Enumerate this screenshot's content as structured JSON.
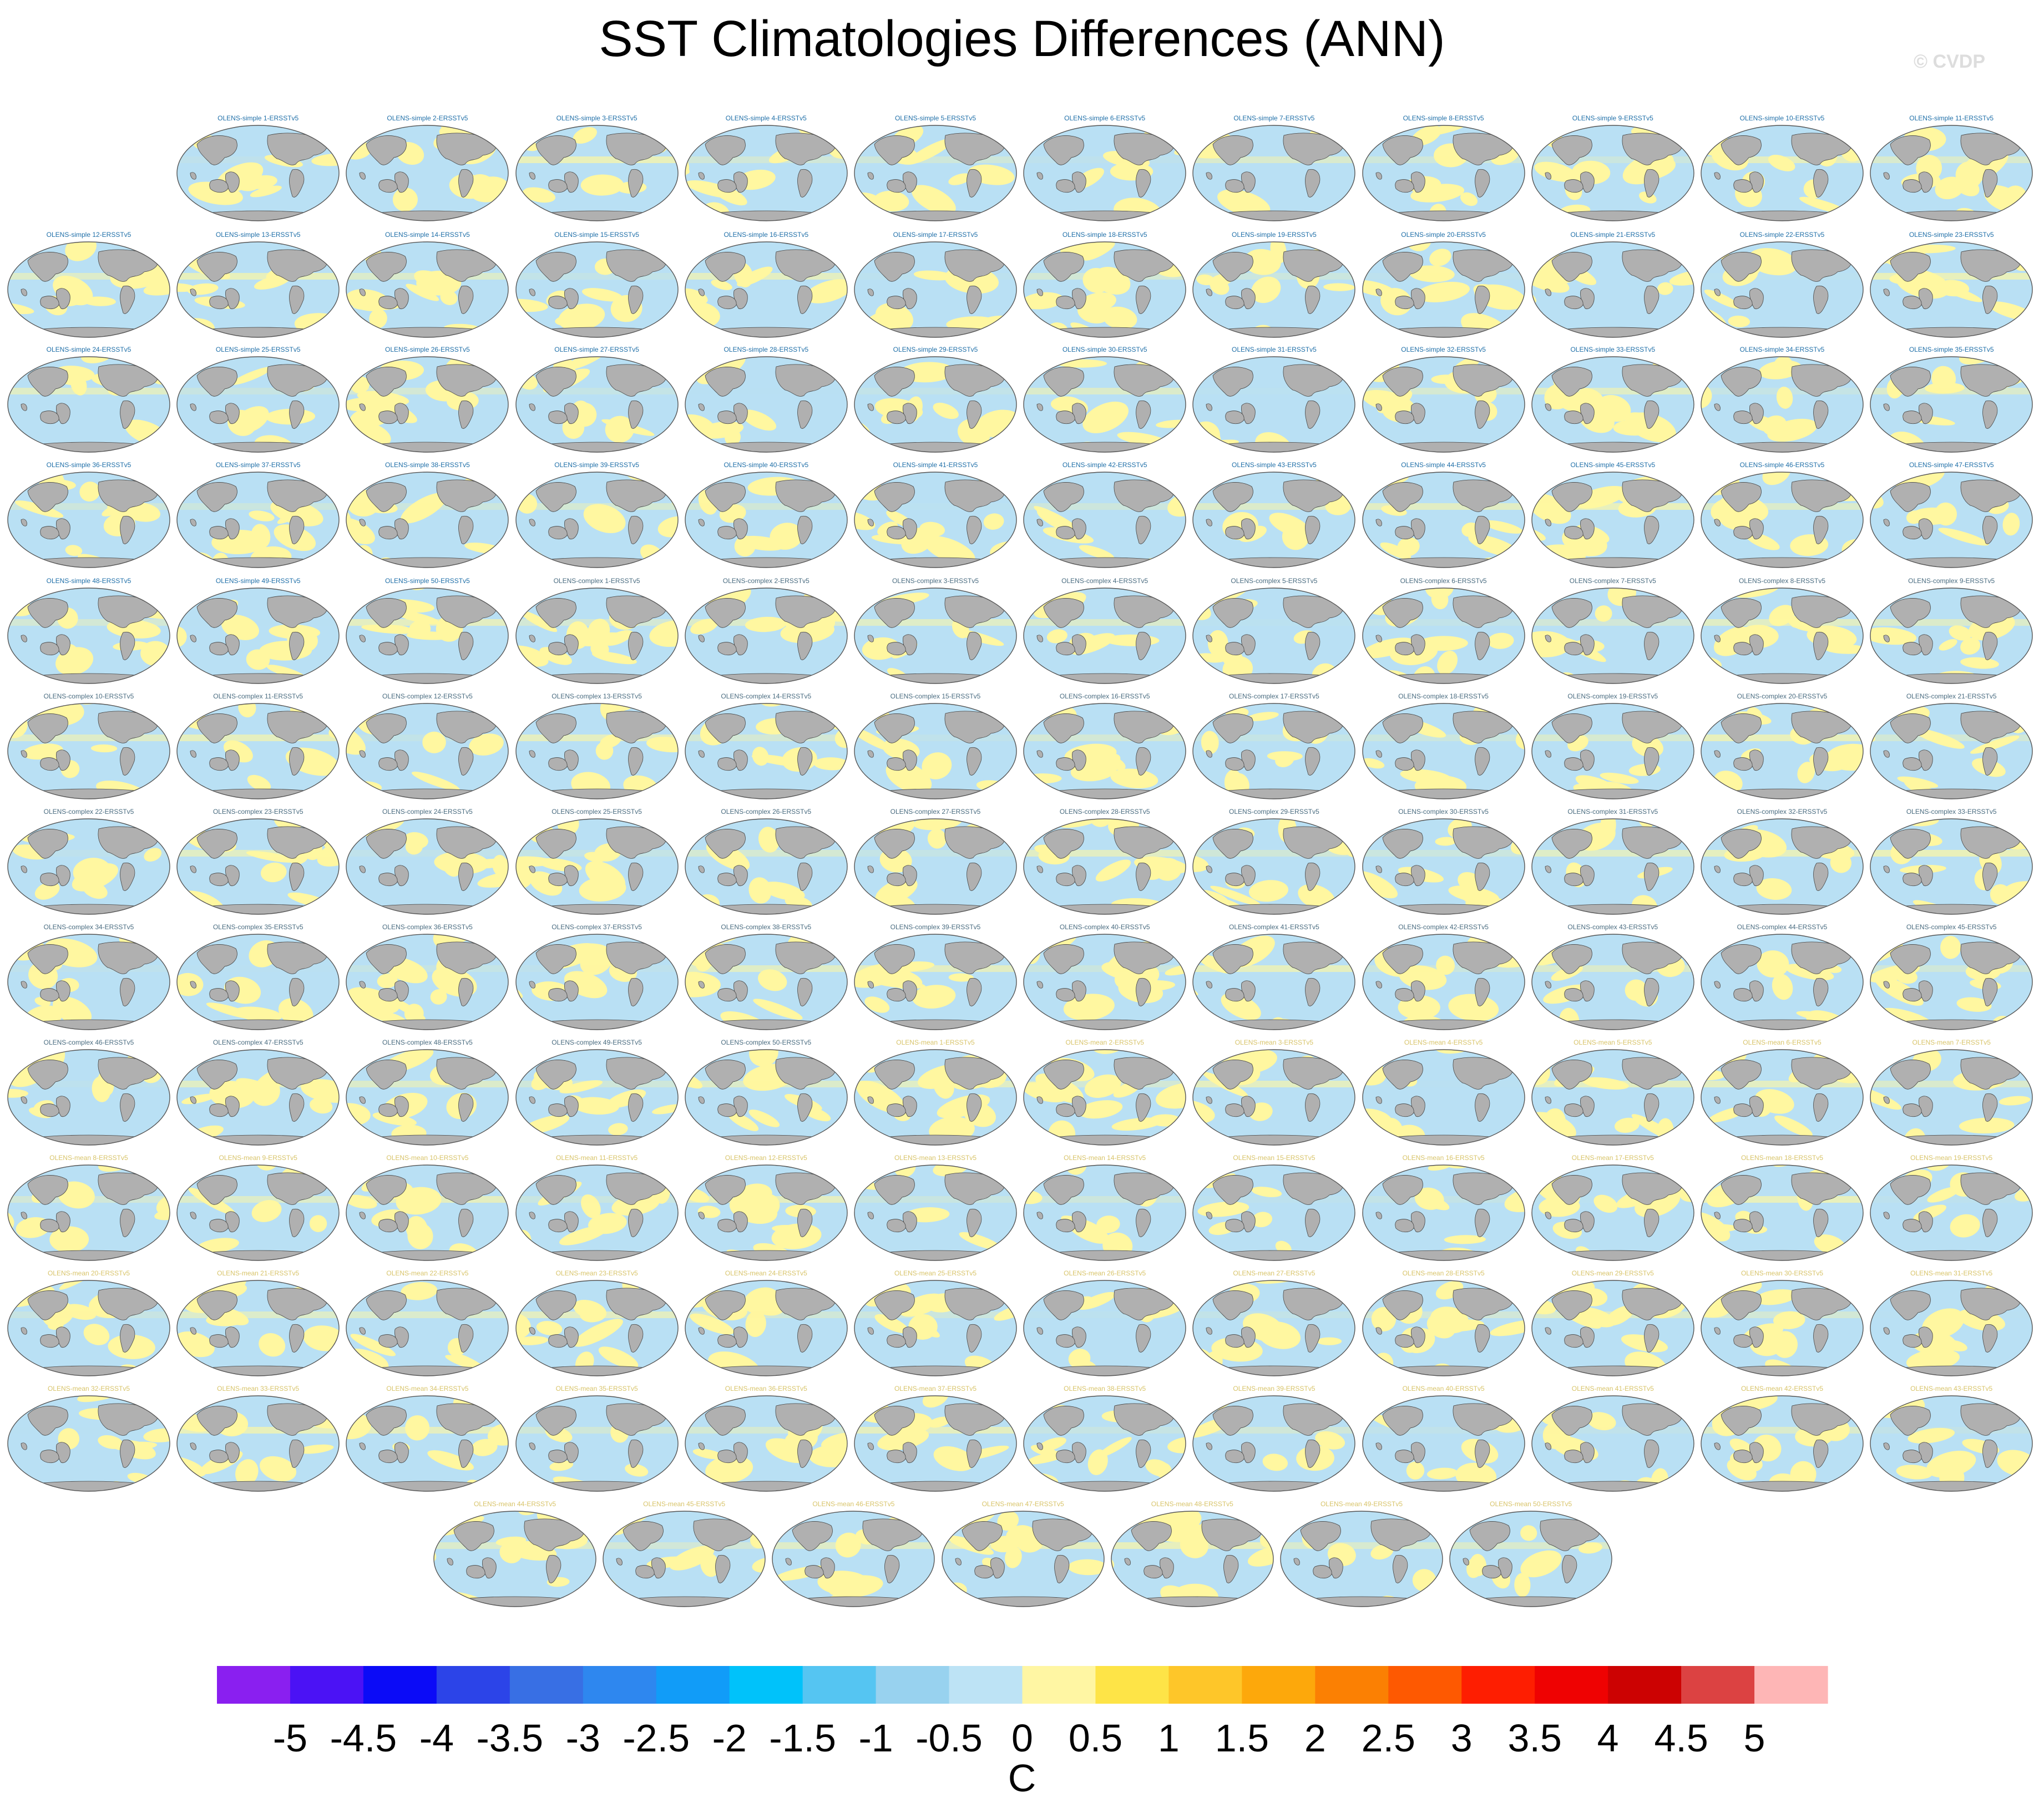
{
  "title": "SST Climatologies Differences (ANN)",
  "watermark": "© CVDP",
  "colors": {
    "ocean_cold": "#b9e0f4",
    "ocean_warm": "#fff7a0",
    "land": "#b0b0b0",
    "coast": "#444444",
    "title_simple": "#1f6fa8",
    "title_complex": "#4a6c80",
    "title_mean": "#d8c46a"
  },
  "panels": {
    "simple": [
      "OLENS-simple 1-ERSSTv5",
      "OLENS-simple 2-ERSSTv5",
      "OLENS-simple 3-ERSSTv5",
      "OLENS-simple 4-ERSSTv5",
      "OLENS-simple 5-ERSSTv5",
      "OLENS-simple 6-ERSSTv5",
      "OLENS-simple 7-ERSSTv5",
      "OLENS-simple 8-ERSSTv5",
      "OLENS-simple 9-ERSSTv5",
      "OLENS-simple 10-ERSSTv5",
      "OLENS-simple 11-ERSSTv5",
      "OLENS-simple 12-ERSSTv5",
      "OLENS-simple 13-ERSSTv5",
      "OLENS-simple 14-ERSSTv5",
      "OLENS-simple 15-ERSSTv5",
      "OLENS-simple 16-ERSSTv5",
      "OLENS-simple 17-ERSSTv5",
      "OLENS-simple 18-ERSSTv5",
      "OLENS-simple 19-ERSSTv5",
      "OLENS-simple 20-ERSSTv5",
      "OLENS-simple 21-ERSSTv5",
      "OLENS-simple 22-ERSSTv5",
      "OLENS-simple 23-ERSSTv5",
      "OLENS-simple 24-ERSSTv5",
      "OLENS-simple 25-ERSSTv5",
      "OLENS-simple 26-ERSSTv5",
      "OLENS-simple 27-ERSSTv5",
      "OLENS-simple 28-ERSSTv5",
      "OLENS-simple 29-ERSSTv5",
      "OLENS-simple 30-ERSSTv5",
      "OLENS-simple 31-ERSSTv5",
      "OLENS-simple 32-ERSSTv5",
      "OLENS-simple 33-ERSSTv5",
      "OLENS-simple 34-ERSSTv5",
      "OLENS-simple 35-ERSSTv5",
      "OLENS-simple 36-ERSSTv5",
      "OLENS-simple 37-ERSSTv5",
      "OLENS-simple 38-ERSSTv5",
      "OLENS-simple 39-ERSSTv5",
      "OLENS-simple 40-ERSSTv5",
      "OLENS-simple 41-ERSSTv5",
      "OLENS-simple 42-ERSSTv5",
      "OLENS-simple 43-ERSSTv5",
      "OLENS-simple 44-ERSSTv5",
      "OLENS-simple 45-ERSSTv5",
      "OLENS-simple 46-ERSSTv5",
      "OLENS-simple 47-ERSSTv5",
      "OLENS-simple 48-ERSSTv5",
      "OLENS-simple 49-ERSSTv5",
      "OLENS-simple 50-ERSSTv5"
    ],
    "complex": [
      "OLENS-complex 1-ERSSTv5",
      "OLENS-complex 2-ERSSTv5",
      "OLENS-complex 3-ERSSTv5",
      "OLENS-complex 4-ERSSTv5",
      "OLENS-complex 5-ERSSTv5",
      "OLENS-complex 6-ERSSTv5",
      "OLENS-complex 7-ERSSTv5",
      "OLENS-complex 8-ERSSTv5",
      "OLENS-complex 9-ERSSTv5",
      "OLENS-complex 10-ERSSTv5",
      "OLENS-complex 11-ERSSTv5",
      "OLENS-complex 12-ERSSTv5",
      "OLENS-complex 13-ERSSTv5",
      "OLENS-complex 14-ERSSTv5",
      "OLENS-complex 15-ERSSTv5",
      "OLENS-complex 16-ERSSTv5",
      "OLENS-complex 17-ERSSTv5",
      "OLENS-complex 18-ERSSTv5",
      "OLENS-complex 19-ERSSTv5",
      "OLENS-complex 20-ERSSTv5",
      "OLENS-complex 21-ERSSTv5",
      "OLENS-complex 22-ERSSTv5",
      "OLENS-complex 23-ERSSTv5",
      "OLENS-complex 24-ERSSTv5",
      "OLENS-complex 25-ERSSTv5",
      "OLENS-complex 26-ERSSTv5",
      "OLENS-complex 27-ERSSTv5",
      "OLENS-complex 28-ERSSTv5",
      "OLENS-complex 29-ERSSTv5",
      "OLENS-complex 30-ERSSTv5",
      "OLENS-complex 31-ERSSTv5",
      "OLENS-complex 32-ERSSTv5",
      "OLENS-complex 33-ERSSTv5",
      "OLENS-complex 34-ERSSTv5",
      "OLENS-complex 35-ERSSTv5",
      "OLENS-complex 36-ERSSTv5",
      "OLENS-complex 37-ERSSTv5",
      "OLENS-complex 38-ERSSTv5",
      "OLENS-complex 39-ERSSTv5",
      "OLENS-complex 40-ERSSTv5",
      "OLENS-complex 41-ERSSTv5",
      "OLENS-complex 42-ERSSTv5",
      "OLENS-complex 43-ERSSTv5",
      "OLENS-complex 44-ERSSTv5",
      "OLENS-complex 45-ERSSTv5",
      "OLENS-complex 46-ERSSTv5",
      "OLENS-complex 47-ERSSTv5",
      "OLENS-complex 48-ERSSTv5",
      "OLENS-complex 49-ERSSTv5",
      "OLENS-complex 50-ERSSTv5"
    ],
    "mean": [
      "OLENS-mean 1-ERSSTv5",
      "OLENS-mean 2-ERSSTv5",
      "OLENS-mean 3-ERSSTv5",
      "OLENS-mean 4-ERSSTv5",
      "OLENS-mean 5-ERSSTv5",
      "OLENS-mean 6-ERSSTv5",
      "OLENS-mean 7-ERSSTv5",
      "OLENS-mean 8-ERSSTv5",
      "OLENS-mean 9-ERSSTv5",
      "OLENS-mean 10-ERSSTv5",
      "OLENS-mean 11-ERSSTv5",
      "OLENS-mean 12-ERSSTv5",
      "OLENS-mean 13-ERSSTv5",
      "OLENS-mean 14-ERSSTv5",
      "OLENS-mean 15-ERSSTv5",
      "OLENS-mean 16-ERSSTv5",
      "OLENS-mean 17-ERSSTv5",
      "OLENS-mean 18-ERSSTv5",
      "OLENS-mean 19-ERSSTv5",
      "OLENS-mean 20-ERSSTv5",
      "OLENS-mean 21-ERSSTv5",
      "OLENS-mean 22-ERSSTv5",
      "OLENS-mean 23-ERSSTv5",
      "OLENS-mean 24-ERSSTv5",
      "OLENS-mean 25-ERSSTv5",
      "OLENS-mean 26-ERSSTv5",
      "OLENS-mean 27-ERSSTv5",
      "OLENS-mean 28-ERSSTv5",
      "OLENS-mean 29-ERSSTv5",
      "OLENS-mean 30-ERSSTv5",
      "OLENS-mean 31-ERSSTv5",
      "OLENS-mean 32-ERSSTv5",
      "OLENS-mean 33-ERSSTv5",
      "OLENS-mean 34-ERSSTv5",
      "OLENS-mean 35-ERSSTv5",
      "OLENS-mean 36-ERSSTv5",
      "OLENS-mean 37-ERSSTv5",
      "OLENS-mean 38-ERSSTv5",
      "OLENS-mean 39-ERSSTv5",
      "OLENS-mean 40-ERSSTv5",
      "OLENS-mean 41-ERSSTv5",
      "OLENS-mean 42-ERSSTv5",
      "OLENS-mean 43-ERSSTv5",
      "OLENS-mean 44-ERSSTv5",
      "OLENS-mean 45-ERSSTv5",
      "OLENS-mean 46-ERSSTv5",
      "OLENS-mean 47-ERSSTv5",
      "OLENS-mean 48-ERSSTv5",
      "OLENS-mean 49-ERSSTv5",
      "OLENS-mean 50-ERSSTv5"
    ]
  },
  "chart_data": {
    "type": "heatmap",
    "title": "SST Climatologies Differences (ANN)",
    "panel_count": 150,
    "colorbar": {
      "unit": "C",
      "range": [
        -5,
        5
      ],
      "step": 0.5,
      "tick_labels": [
        "-5",
        "-4.5",
        "-4",
        "-3.5",
        "-3",
        "-2.5",
        "-2",
        "-1.5",
        "-1",
        "-0.5",
        "0",
        "0.5",
        "1",
        "1.5",
        "2",
        "2.5",
        "3",
        "3.5",
        "4",
        "4.5",
        "5"
      ],
      "colors": [
        "#8a1ff0",
        "#4b12f5",
        "#0b0bf7",
        "#2c44e8",
        "#386fe4",
        "#2e87ef",
        "#119cf8",
        "#00c2fa",
        "#55c5f2",
        "#98d2ef",
        "#bde3f5",
        "#fff6a3",
        "#fee447",
        "#fec629",
        "#fda80b",
        "#fb8003",
        "#fe5901",
        "#fe1e01",
        "#ef0202",
        "#cc0202",
        "#dc4242",
        "#feb6b6"
      ]
    }
  }
}
